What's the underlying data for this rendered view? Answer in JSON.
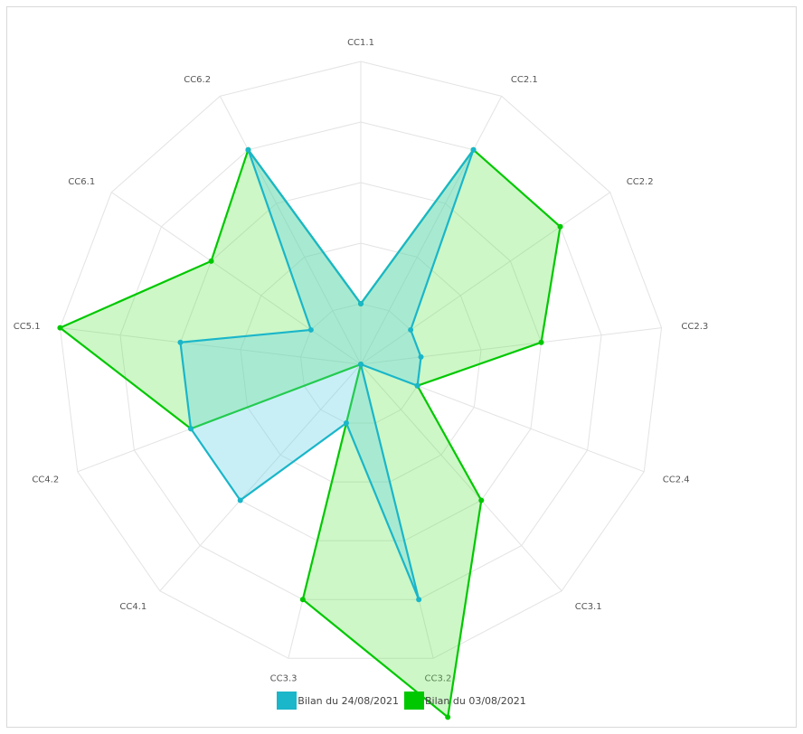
{
  "chart_data": {
    "type": "radar",
    "axes": [
      "CC1.1",
      "CC2.1",
      "CC2.2",
      "CC2.3",
      "CC2.4",
      "CC3.1",
      "CC3.2",
      "CC3.3",
      "CC4.1",
      "CC4.2",
      "CC5.1",
      "CC6.1",
      "CC6.2"
    ],
    "rmax": 5,
    "grid_levels": 5,
    "series": [
      {
        "name": "Bilan du 24/08/2021",
        "color": "#1ab6c9",
        "fill": "rgba(100,210,228,0.35)",
        "values": [
          1,
          4,
          1,
          1,
          1,
          0,
          4,
          1,
          3,
          3,
          3,
          1,
          4
        ]
      },
      {
        "name": "Bilan du 03/08/2021",
        "color": "#00c800",
        "fill": "rgba(90,230,70,0.30)",
        "values": [
          1,
          4,
          4,
          3,
          1,
          3,
          6,
          4,
          0,
          3,
          5,
          3,
          4
        ]
      }
    ]
  }
}
